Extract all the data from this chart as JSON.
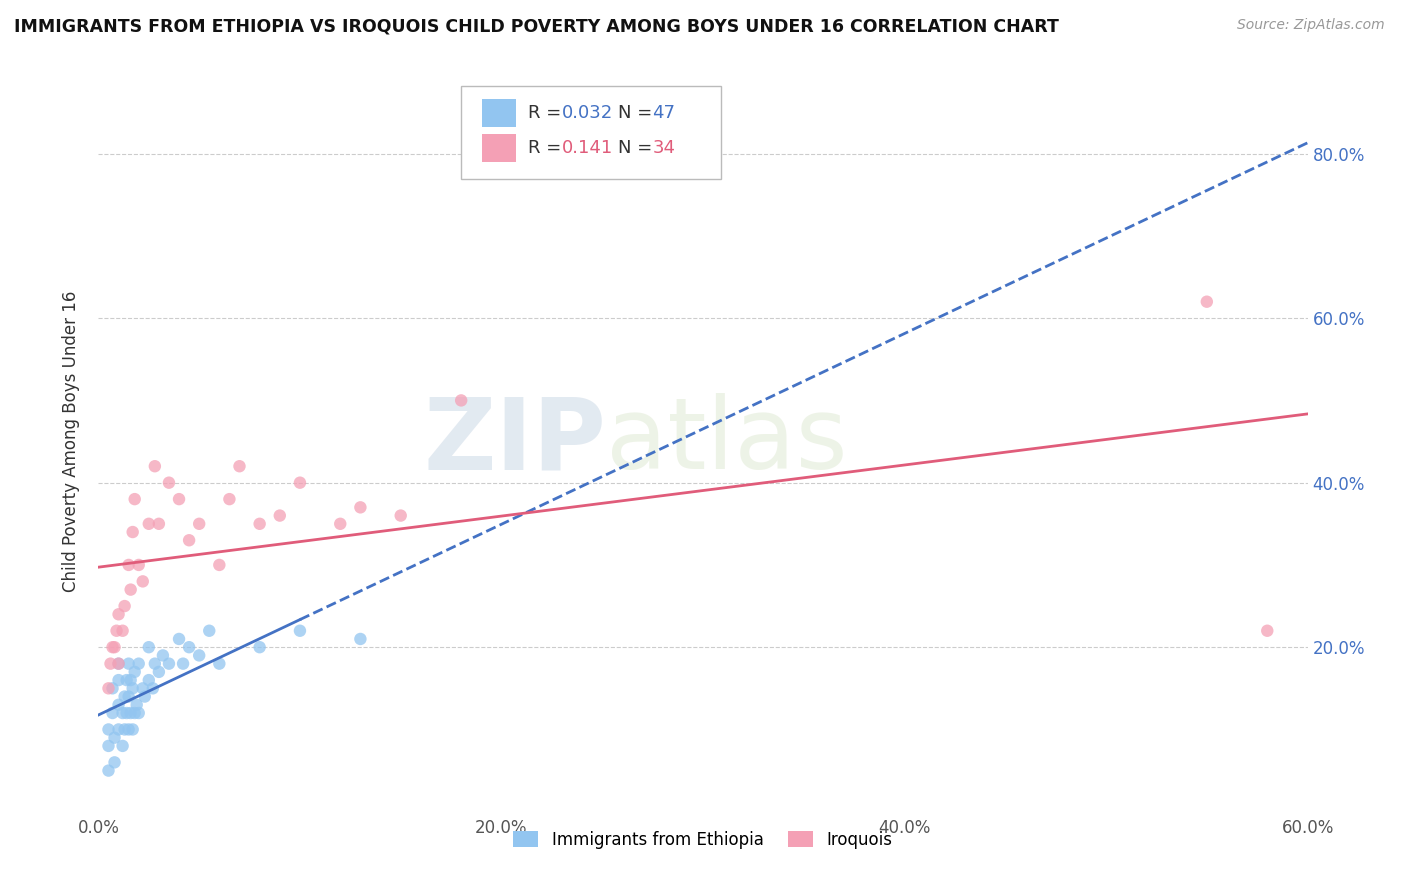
{
  "title": "IMMIGRANTS FROM ETHIOPIA VS IROQUOIS CHILD POVERTY AMONG BOYS UNDER 16 CORRELATION CHART",
  "source": "Source: ZipAtlas.com",
  "ylabel": "Child Poverty Among Boys Under 16",
  "xlim": [
    0.0,
    0.6
  ],
  "ylim": [
    0.0,
    0.9
  ],
  "xtick_labels": [
    "0.0%",
    "",
    "20.0%",
    "",
    "40.0%",
    "",
    "60.0%"
  ],
  "xtick_vals": [
    0.0,
    0.1,
    0.2,
    0.3,
    0.4,
    0.5,
    0.6
  ],
  "ytick_labels": [
    "20.0%",
    "40.0%",
    "60.0%",
    "80.0%"
  ],
  "ytick_vals": [
    0.2,
    0.4,
    0.6,
    0.8
  ],
  "legend1_color": "#92c5f0",
  "legend2_color": "#f4a0b5",
  "trendline1_color": "#4472c4",
  "trendline2_color": "#e05c7a",
  "watermark_zip": "ZIP",
  "watermark_atlas": "atlas",
  "ethiopia_x": [
    0.005,
    0.005,
    0.005,
    0.007,
    0.007,
    0.008,
    0.008,
    0.01,
    0.01,
    0.01,
    0.01,
    0.012,
    0.012,
    0.013,
    0.013,
    0.014,
    0.014,
    0.015,
    0.015,
    0.015,
    0.016,
    0.016,
    0.017,
    0.017,
    0.018,
    0.018,
    0.019,
    0.02,
    0.02,
    0.022,
    0.023,
    0.025,
    0.025,
    0.027,
    0.028,
    0.03,
    0.032,
    0.035,
    0.04,
    0.042,
    0.045,
    0.05,
    0.055,
    0.06,
    0.08,
    0.1,
    0.13
  ],
  "ethiopia_y": [
    0.05,
    0.08,
    0.1,
    0.12,
    0.15,
    0.06,
    0.09,
    0.1,
    0.13,
    0.16,
    0.18,
    0.08,
    0.12,
    0.1,
    0.14,
    0.12,
    0.16,
    0.1,
    0.14,
    0.18,
    0.12,
    0.16,
    0.1,
    0.15,
    0.12,
    0.17,
    0.13,
    0.12,
    0.18,
    0.15,
    0.14,
    0.16,
    0.2,
    0.15,
    0.18,
    0.17,
    0.19,
    0.18,
    0.21,
    0.18,
    0.2,
    0.19,
    0.22,
    0.18,
    0.2,
    0.22,
    0.21
  ],
  "iroquois_x": [
    0.005,
    0.006,
    0.007,
    0.008,
    0.009,
    0.01,
    0.01,
    0.012,
    0.013,
    0.015,
    0.016,
    0.017,
    0.018,
    0.02,
    0.022,
    0.025,
    0.028,
    0.03,
    0.035,
    0.04,
    0.045,
    0.05,
    0.06,
    0.065,
    0.07,
    0.08,
    0.09,
    0.1,
    0.12,
    0.13,
    0.15,
    0.18,
    0.55,
    0.58
  ],
  "iroquois_y": [
    0.15,
    0.18,
    0.2,
    0.2,
    0.22,
    0.18,
    0.24,
    0.22,
    0.25,
    0.3,
    0.27,
    0.34,
    0.38,
    0.3,
    0.28,
    0.35,
    0.42,
    0.35,
    0.4,
    0.38,
    0.33,
    0.35,
    0.3,
    0.38,
    0.42,
    0.35,
    0.36,
    0.4,
    0.35,
    0.37,
    0.36,
    0.5,
    0.62,
    0.22
  ]
}
